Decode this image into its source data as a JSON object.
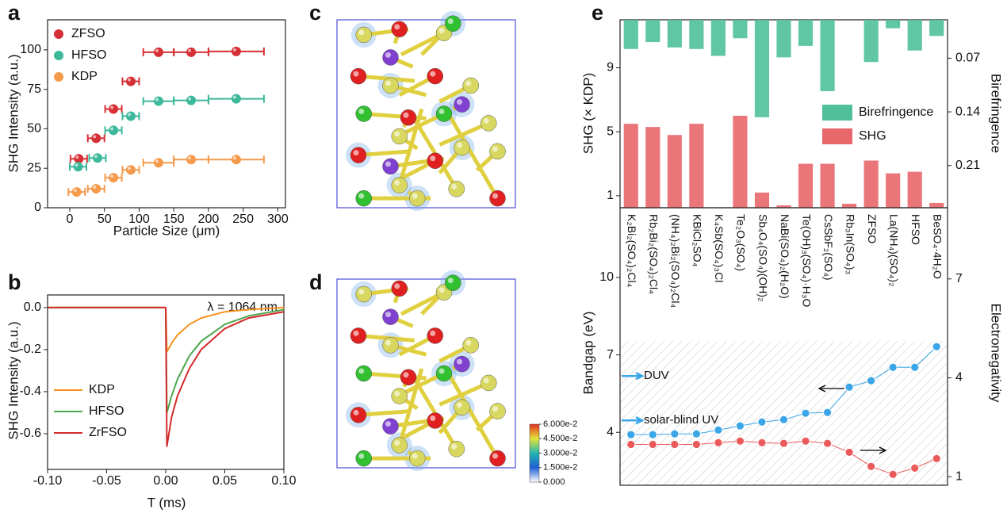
{
  "panel_labels": [
    "a",
    "b",
    "c",
    "d",
    "e"
  ],
  "chart_data": [
    {
      "type": "scatter",
      "xlabel": "Particle Size (μm)",
      "ylabel": "SHG Intensity (a.u.)",
      "xlim": [
        -32,
        311
      ],
      "ylim": [
        0,
        119
      ],
      "xticks": [
        0,
        50,
        100,
        150,
        200,
        250,
        300
      ],
      "yticks": [
        0,
        25,
        50,
        75,
        100
      ],
      "legend": "upper left",
      "series": [
        {
          "name": "ZFSO",
          "color": "#d62f35",
          "x": [
            13,
            38,
            63,
            88,
            128,
            175,
            240
          ],
          "xerr": [
            12,
            12,
            12,
            12,
            22,
            25,
            40
          ],
          "values": [
            31,
            44,
            62.5,
            80,
            98.5,
            98.5,
            99
          ]
        },
        {
          "name": "HFSO",
          "color": "#3cb89a",
          "x": [
            12,
            40,
            63,
            88,
            128,
            175,
            240
          ],
          "xerr": [
            12,
            12,
            12,
            12,
            22,
            25,
            40
          ],
          "values": [
            26,
            31.5,
            49,
            58,
            67.5,
            68,
            69
          ]
        },
        {
          "name": "KDP",
          "color": "#f59a4b",
          "x": [
            10,
            38,
            63,
            88,
            128,
            175,
            240
          ],
          "xerr": [
            12,
            12,
            12,
            12,
            22,
            25,
            40
          ],
          "values": [
            10,
            12,
            19,
            24,
            28.5,
            30.5,
            30.5
          ]
        }
      ]
    },
    {
      "type": "line",
      "xlabel": "T (ms)",
      "ylabel": "SHG Intensity (a.u.)",
      "annotation": "λ = 1064 nm",
      "xlim": [
        -0.1,
        0.1
      ],
      "ylim": [
        -0.77,
        0.06
      ],
      "xticks": [
        {
          "value": -0.1,
          "label": "-0.10"
        },
        {
          "value": -0.05,
          "label": "-0.05"
        },
        {
          "value": 0,
          "label": "0.00"
        },
        {
          "value": 0.05,
          "label": "0.05"
        },
        {
          "value": 0.1,
          "label": "0.10"
        }
      ],
      "yticks": [
        {
          "value": 0,
          "label": "0.0"
        },
        -0.2,
        -0.4,
        -0.6
      ],
      "legend": "lower left",
      "x": [
        -0.1,
        -0.05,
        0,
        0.001,
        0.005,
        0.01,
        0.02,
        0.03,
        0.05,
        0.07,
        0.1
      ],
      "series": [
        {
          "name": "KDP",
          "color": "#f7941d",
          "values": [
            0,
            0,
            0,
            -0.21,
            -0.17,
            -0.13,
            -0.08,
            -0.05,
            -0.02,
            -0.01,
            0
          ]
        },
        {
          "name": "HFSO",
          "color": "#4ca64c",
          "values": [
            0,
            0,
            0,
            -0.5,
            -0.42,
            -0.34,
            -0.23,
            -0.16,
            -0.08,
            -0.04,
            -0.01
          ]
        },
        {
          "name": "ZrFSO",
          "color": "#d42a2a",
          "values": [
            0,
            0,
            0,
            -0.66,
            -0.52,
            -0.42,
            -0.29,
            -0.2,
            -0.1,
            -0.05,
            -0.02
          ]
        }
      ]
    },
    {
      "type": "colorbar",
      "ylim": [
        0,
        0.06
      ],
      "colors": [
        "#ffffff",
        "#1f5fd6",
        "#22b5b0",
        "#e5e53a",
        "#e23020"
      ],
      "yticks": [
        {
          "value": 0.06,
          "label": "6.000e-2"
        },
        {
          "value": 0.045,
          "label": "4.500e-2"
        },
        {
          "value": 0.03,
          "label": "3.000e-2"
        },
        {
          "value": 0.015,
          "label": "1.500e-2"
        },
        {
          "value": 0,
          "label": "0.000"
        }
      ]
    },
    {
      "type": "bar",
      "ylabel": "SHG (× KDP)",
      "y2label": "Birefringence",
      "categories": [
        "K₂Bi₂(SO₄)₂Cl₄",
        "Rb₂Bi₂(SO₄)₂Cl₄",
        "(NH₄)₂Bi₂(SO₄)₂Cl₄",
        "KBiCl₂SO₄",
        "K₄Sb(SO₄)₃Cl",
        "Te₂O₃(SO₄)",
        "Sb₄O₄(SO₄)(OH)₂",
        "NaBi(SO₄)₂(H₂O)",
        "Te(OH)₃(SO₄)·H₃O",
        "CsSbF₂(SO₄)",
        "Rb₃In(SO₄)₃",
        "ZFSO",
        "La(NH₄)(SO₄)₂",
        "HFSO",
        "BeSO₄·4H₂O"
      ],
      "ylim": [
        0.25,
        12
      ],
      "yticks": [
        1,
        5,
        9
      ],
      "y2lim": [
        0.02,
        0.265
      ],
      "y2ticks": [
        0.07,
        0.14,
        0.21
      ],
      "y2_inverted": true,
      "legend": "center right",
      "series": [
        {
          "name": "Birefringence",
          "color": "#4fc09a",
          "axis": "y2",
          "values": [
            0.058,
            0.049,
            0.056,
            0.058,
            0.067,
            0.044,
            0.147,
            0.069,
            0.054,
            0.113,
            null,
            0.075,
            0.031,
            0.06,
            0.041
          ]
        },
        {
          "name": "SHG",
          "color": "#e8676a",
          "values": [
            5.5,
            5.3,
            4.8,
            5.5,
            null,
            6.0,
            1.2,
            0.4,
            3.0,
            3.0,
            0.5,
            3.2,
            2.4,
            2.5,
            0.55
          ]
        }
      ]
    },
    {
      "type": "line",
      "markers": true,
      "ylabel": "Bandgap (eV)",
      "y2label": "Electronegativity",
      "ylim": [
        1.95,
        12.7
      ],
      "yticks": [
        4,
        7,
        10
      ],
      "y2lim": [
        0.74,
        9.16
      ],
      "y2ticks": [
        1,
        4,
        7
      ],
      "annotations": [
        {
          "text": "DUV",
          "y": 6.18
        },
        {
          "text": "solar-blind UV",
          "y": 4.46
        }
      ],
      "series": [
        {
          "color": "#3aa6e8",
          "values": [
            3.91,
            3.91,
            3.94,
            3.94,
            4.09,
            4.25,
            4.4,
            4.49,
            4.74,
            4.77,
            5.75,
            6.0,
            6.52,
            6.52,
            7.32
          ]
        },
        {
          "color": "#ea5a5a",
          "axis": "y2",
          "values": [
            1.98,
            1.98,
            1.98,
            1.98,
            2.03,
            2.08,
            2.03,
            2.01,
            2.08,
            2.01,
            1.74,
            1.31,
            1.07,
            1.26,
            1.55
          ]
        }
      ]
    }
  ]
}
